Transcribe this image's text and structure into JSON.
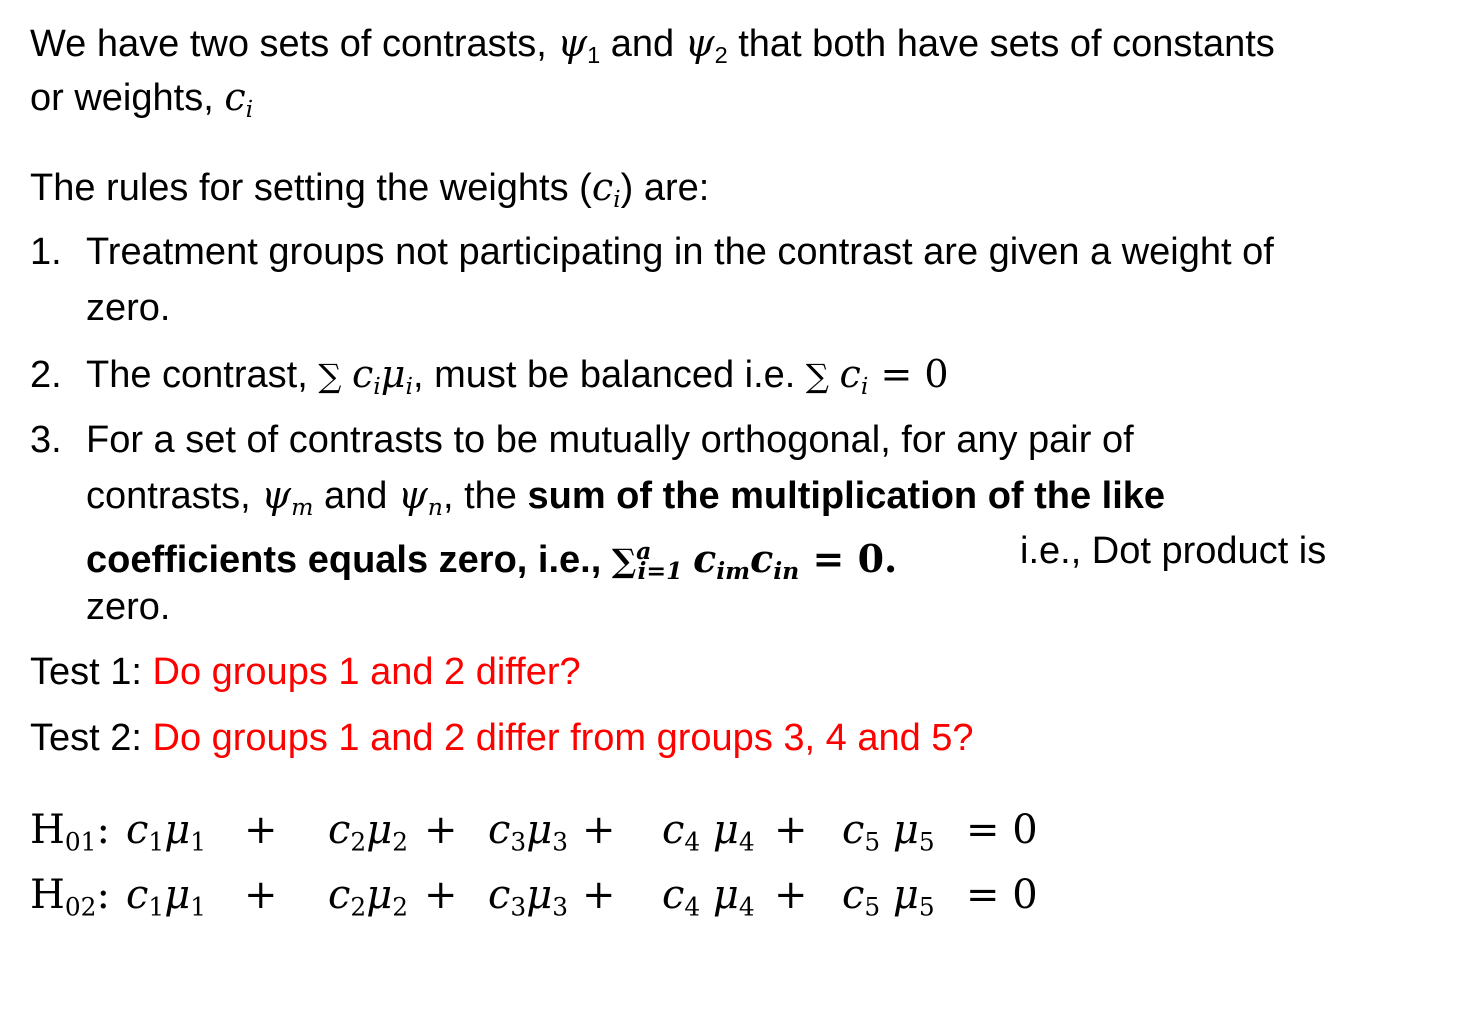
{
  "intro": {
    "text_a": "We have two sets of contrasts, ",
    "psi1": "ψ",
    "psi1_sub": "1",
    "and": " and ",
    "psi2": "ψ",
    "psi2_sub": "2",
    "text_b": " that both have sets of constants",
    "text_c": "or weights, ",
    "c": "c",
    "c_sub": "i"
  },
  "rules_heading": {
    "text_a": "The rules for setting the weights (",
    "c": "c",
    "c_sub": "i",
    "text_b": ") are:"
  },
  "rules": [
    {
      "number": "1.",
      "line1": "Treatment groups not participating in the contrast are given a weight of",
      "line2": "zero."
    },
    {
      "number": "2.",
      "text_a": "The contrast, ",
      "sum_expr": "∑",
      "c": "c",
      "c_sub": "i",
      "mu": "μ",
      "mu_sub": "i",
      "text_b": ", must be balanced i.e. ",
      "sum2": "∑",
      "c2": "c",
      "c2_sub": "i",
      "eq": " = 0"
    },
    {
      "number": "3.",
      "line1": "For a set of contrasts to be mutually orthogonal, for any pair of",
      "line2_a": "contrasts, ",
      "psi_m": "ψ",
      "psi_m_sub": "m",
      "line2_b": " and ",
      "psi_n": "ψ",
      "psi_n_sub": "n",
      "line2_c": ", the ",
      "line2_bold": "sum of the multiplication of the like",
      "line3_bold": "coefficients equals zero, i.e., ",
      "sum3": "∑",
      "sum3_sup": "a",
      "sum3_sub": "i=1",
      "cim": "c",
      "cim_sub": "im",
      "cin": "c",
      "cin_sub": "in",
      "eq3": " = 0.",
      "line3_tail": "i.e., Dot product is",
      "line4": "zero."
    }
  ],
  "tests": [
    {
      "label": "Test 1: ",
      "question": "Do groups 1 and 2 differ?"
    },
    {
      "label": "Test 2: ",
      "question": "Do groups 1 and 2 differ from groups 3, 4 and 5?"
    }
  ],
  "hypotheses": [
    {
      "H": "H",
      "H_sub": "01",
      "colon": ":",
      "terms": [
        {
          "c": "c",
          "c_sub": "1",
          "mu": "μ",
          "mu_sub": "1",
          "op": "+"
        },
        {
          "c": "c",
          "c_sub": "2",
          "mu": "μ",
          "mu_sub": "2",
          "op": "+"
        },
        {
          "c": "c",
          "c_sub": "3",
          "mu": "μ",
          "mu_sub": "3",
          "op": "+"
        },
        {
          "c": "c",
          "c_sub": "4",
          "mu": "μ",
          "mu_sub": "4",
          "op": "+"
        },
        {
          "c": "c",
          "c_sub": "5",
          "mu": "μ",
          "mu_sub": "5",
          "op": "= 0"
        }
      ]
    },
    {
      "H": "H",
      "H_sub": "02",
      "colon": ":",
      "terms": [
        {
          "c": "c",
          "c_sub": "1",
          "mu": "μ",
          "mu_sub": "1",
          "op": "+"
        },
        {
          "c": "c",
          "c_sub": "2",
          "mu": "μ",
          "mu_sub": "2",
          "op": "+"
        },
        {
          "c": "c",
          "c_sub": "3",
          "mu": "μ",
          "mu_sub": "3",
          "op": "+"
        },
        {
          "c": "c",
          "c_sub": "4",
          "mu": "μ",
          "mu_sub": "4",
          "op": "+"
        },
        {
          "c": "c",
          "c_sub": "5",
          "mu": "μ",
          "mu_sub": "5",
          "op": "= 0"
        }
      ]
    }
  ]
}
